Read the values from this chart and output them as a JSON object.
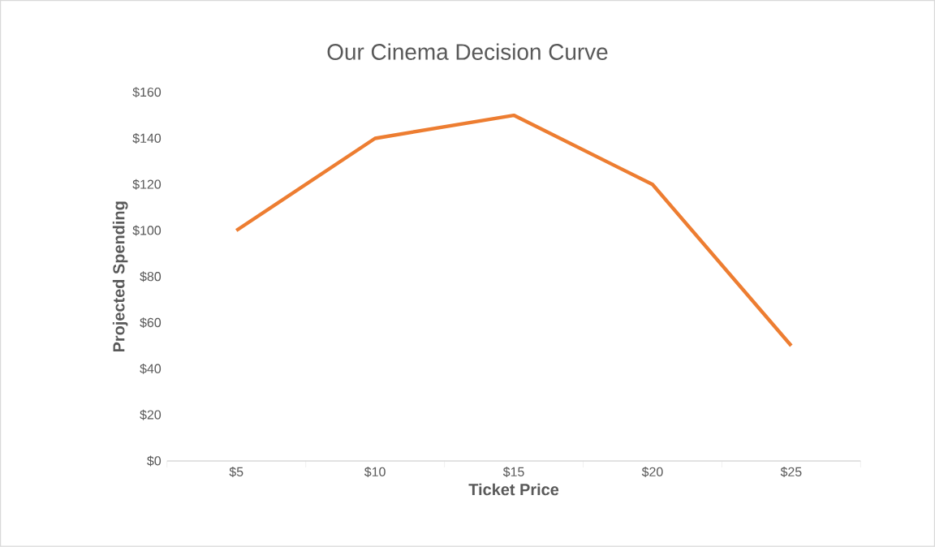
{
  "chart_data": {
    "type": "line",
    "title": "Our Cinema Decision Curve",
    "xlabel": "Ticket Price",
    "ylabel": "Projected Spending",
    "categories": [
      "$5",
      "$10",
      "$15",
      "$20",
      "$25"
    ],
    "series": [
      {
        "color": "#ed7d31",
        "values": [
          100,
          140,
          150,
          120,
          50
        ]
      }
    ],
    "ylim": [
      0,
      160
    ],
    "yticks": [
      {
        "value": 0,
        "label": "$0"
      },
      {
        "value": 20,
        "label": "$20"
      },
      {
        "value": 40,
        "label": "$40"
      },
      {
        "value": 60,
        "label": "$60"
      },
      {
        "value": 80,
        "label": "$80"
      },
      {
        "value": 100,
        "label": "$100"
      },
      {
        "value": 120,
        "label": "$120"
      },
      {
        "value": 140,
        "label": "$140"
      },
      {
        "value": 160,
        "label": "$160"
      }
    ],
    "grid": false,
    "legend": false,
    "marker": "none",
    "line_style": "solid"
  }
}
